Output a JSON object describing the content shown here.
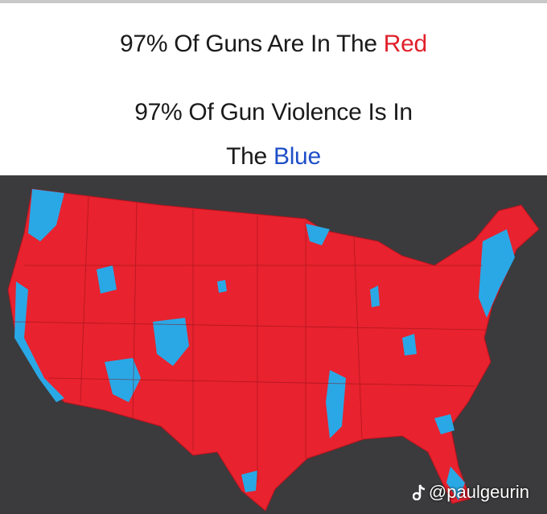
{
  "caption": {
    "line1": "97% Of Guns Are In The",
    "line1_highlight": "Red",
    "line2": "97% Of Gun Violence Is In",
    "line3": "The",
    "line3_highlight": "Blue"
  },
  "watermark": "@paulgeurin"
}
